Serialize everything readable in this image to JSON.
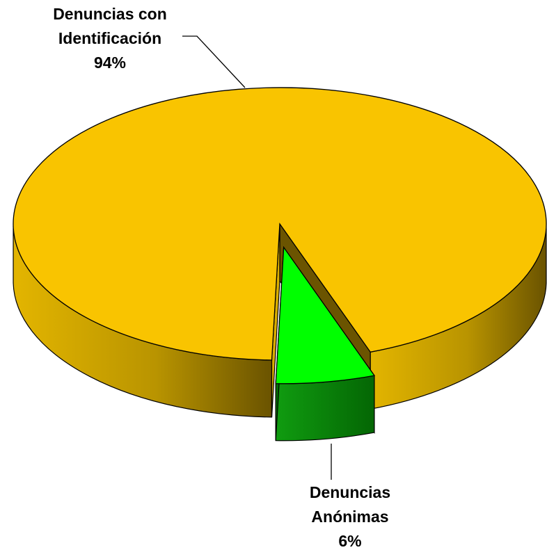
{
  "chart_data": {
    "type": "pie",
    "style": "3d-exploded",
    "slices": [
      {
        "name": "Denuncias con Identificación",
        "value": 94,
        "percent_label": "94%",
        "label_lines": [
          "Denuncias con",
          "Identificación",
          "94%"
        ],
        "color": "#F9C400",
        "side_color": "#C9A000",
        "exploded": false
      },
      {
        "name": "Denuncias Anónimas",
        "value": 6,
        "percent_label": "6%",
        "label_lines": [
          "Denuncias",
          "Anónimas",
          "6%"
        ],
        "color": "#00FF00",
        "side_color": "#0A8A0A",
        "exploded": true
      }
    ],
    "legend": "none",
    "data_labels": "category name and percentage with leader lines"
  }
}
